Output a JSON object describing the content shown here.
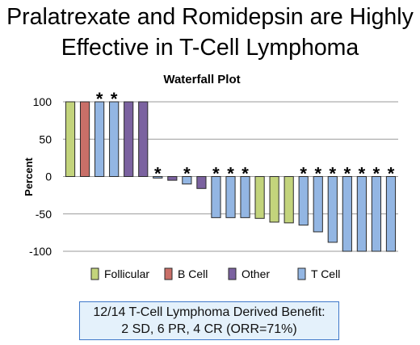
{
  "slide": {
    "title_line1": "Pralatrexate and Romidepsin are Highly",
    "title_line2": "Effective in T-Cell Lymphoma"
  },
  "summary": {
    "line1": "12/14 T-Cell Lymphoma Derived Benefit:",
    "line2": "2 SD, 6 PR, 4 CR (ORR=71%)"
  },
  "chart_data": {
    "type": "bar",
    "title": "Waterfall Plot",
    "ylabel": "Percent",
    "xlabel": "",
    "ylim": [
      -100,
      100
    ],
    "yticks": [
      100,
      50,
      0,
      -50,
      -100
    ],
    "grid": true,
    "legend_position": "bottom",
    "colors": {
      "Follicular": "#c3d47c",
      "B Cell": "#c96f68",
      "Other": "#7b62a0",
      "T Cell": "#93b6e3"
    },
    "legend": [
      "Follicular",
      "B Cell",
      "Other",
      "T Cell"
    ],
    "asterisk_label": "*",
    "bars": [
      {
        "value": 100,
        "group": "Follicular",
        "asterisk": false
      },
      {
        "value": 100,
        "group": "B Cell",
        "asterisk": false
      },
      {
        "value": 100,
        "group": "T Cell",
        "asterisk": true
      },
      {
        "value": 100,
        "group": "T Cell",
        "asterisk": true
      },
      {
        "value": 100,
        "group": "Other",
        "asterisk": false
      },
      {
        "value": 100,
        "group": "Other",
        "asterisk": false
      },
      {
        "value": -2,
        "group": "T Cell",
        "asterisk": true
      },
      {
        "value": -5,
        "group": "Other",
        "asterisk": false
      },
      {
        "value": -10,
        "group": "T Cell",
        "asterisk": true
      },
      {
        "value": -16,
        "group": "Other",
        "asterisk": false
      },
      {
        "value": -55,
        "group": "T Cell",
        "asterisk": true
      },
      {
        "value": -55,
        "group": "T Cell",
        "asterisk": true
      },
      {
        "value": -55,
        "group": "T Cell",
        "asterisk": true
      },
      {
        "value": -56,
        "group": "Follicular",
        "asterisk": false
      },
      {
        "value": -61,
        "group": "Follicular",
        "asterisk": false
      },
      {
        "value": -62,
        "group": "Follicular",
        "asterisk": false
      },
      {
        "value": -65,
        "group": "T Cell",
        "asterisk": true
      },
      {
        "value": -74,
        "group": "T Cell",
        "asterisk": true
      },
      {
        "value": -88,
        "group": "T Cell",
        "asterisk": true
      },
      {
        "value": -100,
        "group": "T Cell",
        "asterisk": true
      },
      {
        "value": -100,
        "group": "T Cell",
        "asterisk": true
      },
      {
        "value": -100,
        "group": "T Cell",
        "asterisk": true
      },
      {
        "value": -100,
        "group": "T Cell",
        "asterisk": true
      }
    ]
  }
}
